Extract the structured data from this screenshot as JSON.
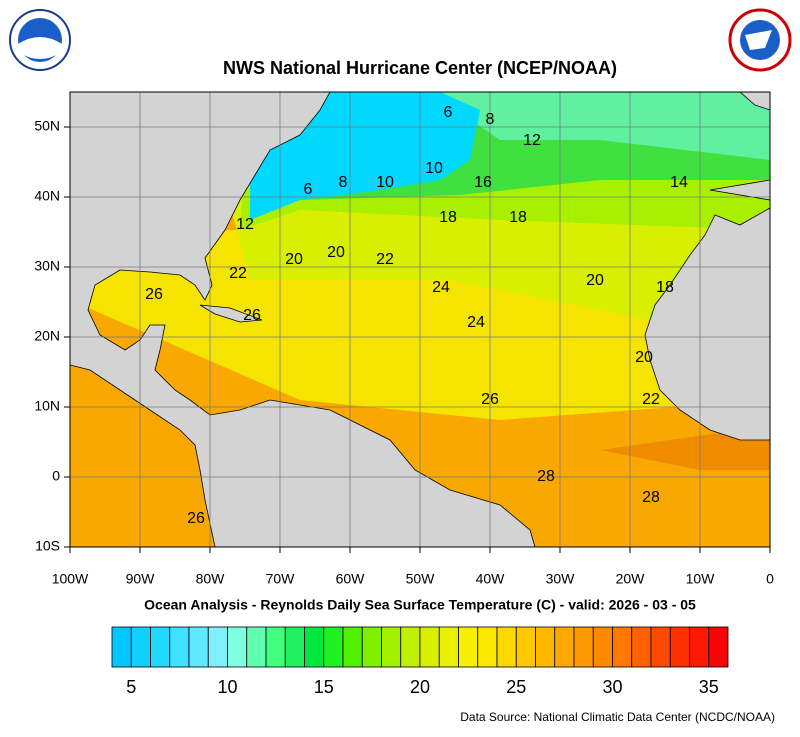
{
  "header": {
    "title": "NWS National Hurricane Center (NCEP/NOAA)"
  },
  "map": {
    "lonlim": [
      -100,
      0
    ],
    "latlim": [
      -10,
      55
    ],
    "lonticks": [
      {
        "value": -100,
        "label": "100W"
      },
      {
        "value": -90,
        "label": "90W"
      },
      {
        "value": -80,
        "label": "80W"
      },
      {
        "value": -70,
        "label": "70W"
      },
      {
        "value": -60,
        "label": "60W"
      },
      {
        "value": -50,
        "label": "50W"
      },
      {
        "value": -40,
        "label": "40W"
      },
      {
        "value": -30,
        "label": "30W"
      },
      {
        "value": -20,
        "label": "20W"
      },
      {
        "value": -10,
        "label": "10W"
      },
      0
    ],
    "latticks": [
      {
        "value": -10,
        "label": "10S"
      },
      0,
      {
        "value": 10,
        "label": "10N"
      },
      {
        "value": 20,
        "label": "20N"
      },
      {
        "value": 30,
        "label": "30N"
      },
      {
        "value": 40,
        "label": "40N"
      },
      {
        "value": 50,
        "label": "50N"
      }
    ],
    "grid": true,
    "contour_labels": [
      {
        "value": 6,
        "lon": -46,
        "lat": 52
      },
      {
        "value": 8,
        "lon": -40,
        "lat": 51
      },
      {
        "value": 12,
        "lon": -34,
        "lat": 48
      },
      {
        "value": 14,
        "lon": -13,
        "lat": 42
      },
      {
        "value": 10,
        "lon": -48,
        "lat": 44
      },
      {
        "value": 10,
        "lon": -55,
        "lat": 42
      },
      {
        "value": 8,
        "lon": -61,
        "lat": 42
      },
      {
        "value": 6,
        "lon": -66,
        "lat": 41
      },
      {
        "value": 16,
        "lon": -41,
        "lat": 42
      },
      {
        "value": 18,
        "lon": -46,
        "lat": 37
      },
      {
        "value": 18,
        "lon": -36,
        "lat": 37
      },
      {
        "value": 12,
        "lon": -75,
        "lat": 36
      },
      {
        "value": 20,
        "lon": -68,
        "lat": 31
      },
      {
        "value": 20,
        "lon": -62,
        "lat": 32
      },
      {
        "value": 22,
        "lon": -55,
        "lat": 31
      },
      {
        "value": 22,
        "lon": -76,
        "lat": 29
      },
      {
        "value": 20,
        "lon": -25,
        "lat": 28
      },
      {
        "value": 18,
        "lon": -15,
        "lat": 27
      },
      {
        "value": 24,
        "lon": -47,
        "lat": 27
      },
      {
        "value": 26,
        "lon": -88,
        "lat": 26
      },
      {
        "value": 26,
        "lon": -74,
        "lat": 23
      },
      {
        "value": 24,
        "lon": -42,
        "lat": 22
      },
      {
        "value": 20,
        "lon": -18,
        "lat": 17
      },
      {
        "value": 26,
        "lon": -40,
        "lat": 11
      },
      {
        "value": 22,
        "lon": -17,
        "lat": 11
      },
      {
        "value": 28,
        "lon": -32,
        "lat": 0
      },
      {
        "value": 28,
        "lon": -17,
        "lat": -3
      },
      {
        "value": 26,
        "lon": -82,
        "lat": -6
      }
    ]
  },
  "subtitle": "Ocean Analysis - Reynolds Daily Sea Surface Temperature (C) - valid: 2026 - 03 - 05",
  "colorbar": {
    "range": [
      4,
      36
    ],
    "ticks": [
      5,
      10,
      15,
      20,
      25,
      30,
      35
    ],
    "colors": [
      "#00c8ff",
      "#10d0ff",
      "#20d8ff",
      "#40e0ff",
      "#60e8ff",
      "#80f0ff",
      "#80ffe0",
      "#60ffb0",
      "#40ff80",
      "#20f060",
      "#00e840",
      "#20f020",
      "#50f000",
      "#80f000",
      "#a0f000",
      "#c0f000",
      "#d8f000",
      "#e8f000",
      "#f8f000",
      "#ffe800",
      "#ffd800",
      "#ffc800",
      "#ffb800",
      "#ffa800",
      "#ff9800",
      "#ff8800",
      "#ff7800",
      "#ff6000",
      "#ff4800",
      "#ff3000",
      "#ff1800",
      "#ff0000"
    ]
  },
  "footer": {
    "source": "Data Source: National Climatic Data Center (NCDC/NOAA)"
  }
}
